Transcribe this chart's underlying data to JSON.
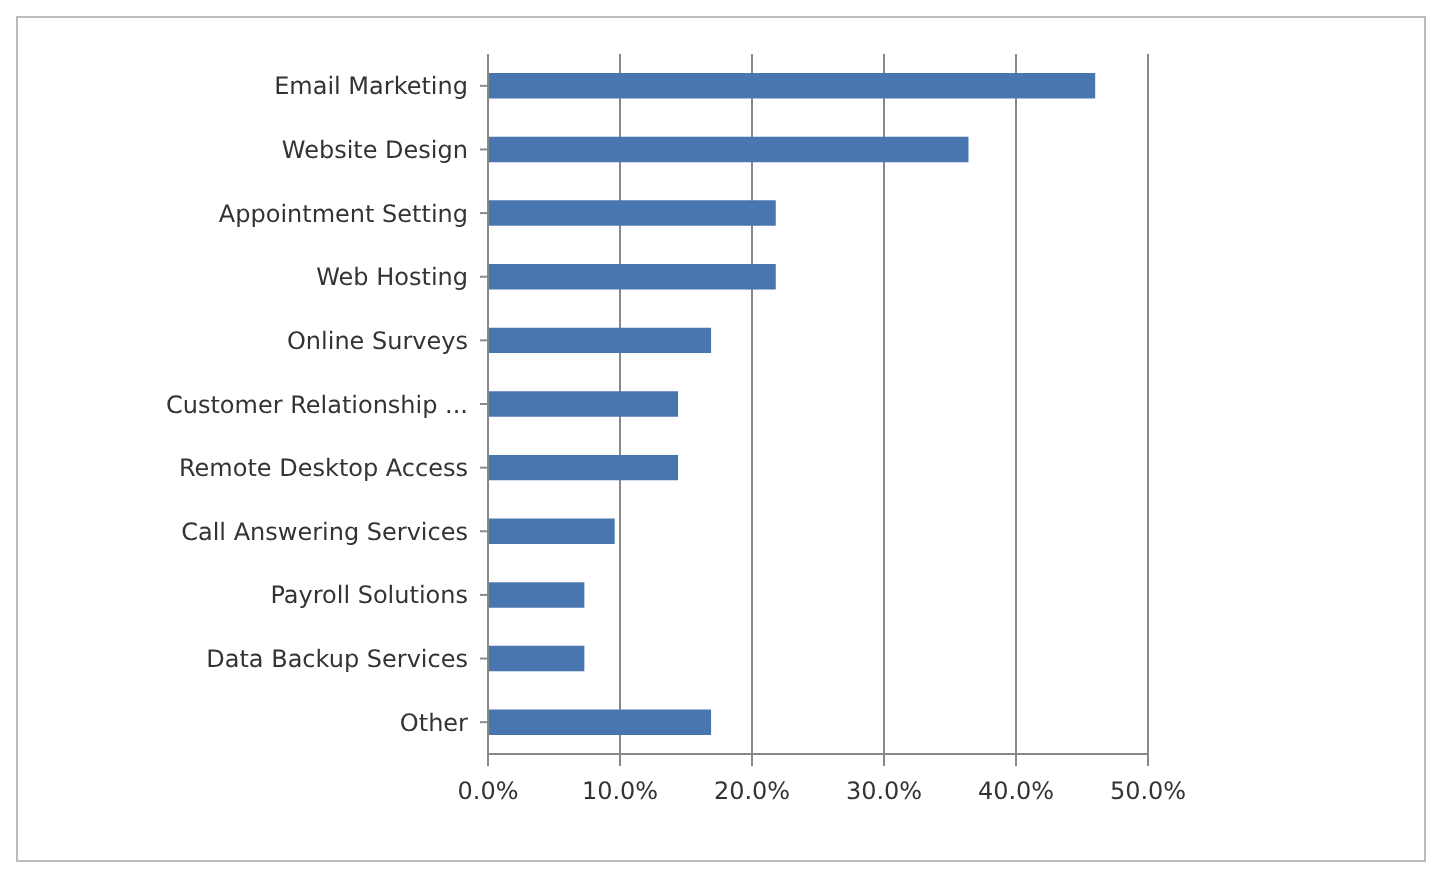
{
  "chart_data": {
    "type": "bar",
    "orientation": "horizontal",
    "categories": [
      "Email Marketing",
      "Website Design",
      "Appointment Setting",
      "Web Hosting",
      "Online Surveys",
      "Customer Relationship ...",
      "Remote Desktop Access",
      "Call Answering Services",
      "Payroll Solutions",
      "Data Backup Services",
      "Other"
    ],
    "values": [
      46.0,
      36.4,
      21.8,
      21.8,
      16.9,
      14.4,
      14.4,
      9.6,
      7.3,
      7.3,
      16.9
    ],
    "color": "#4a76b0",
    "xlim": [
      0,
      50
    ],
    "xticks": [
      {
        "value": 0,
        "label": "0.0%"
      },
      {
        "value": 10,
        "label": "10.0%"
      },
      {
        "value": 20,
        "label": "20.0%"
      },
      {
        "value": 30,
        "label": "30.0%"
      },
      {
        "value": 40,
        "label": "40.0%"
      },
      {
        "value": 50,
        "label": "50.0%"
      }
    ],
    "grid": "x",
    "legend": false
  }
}
